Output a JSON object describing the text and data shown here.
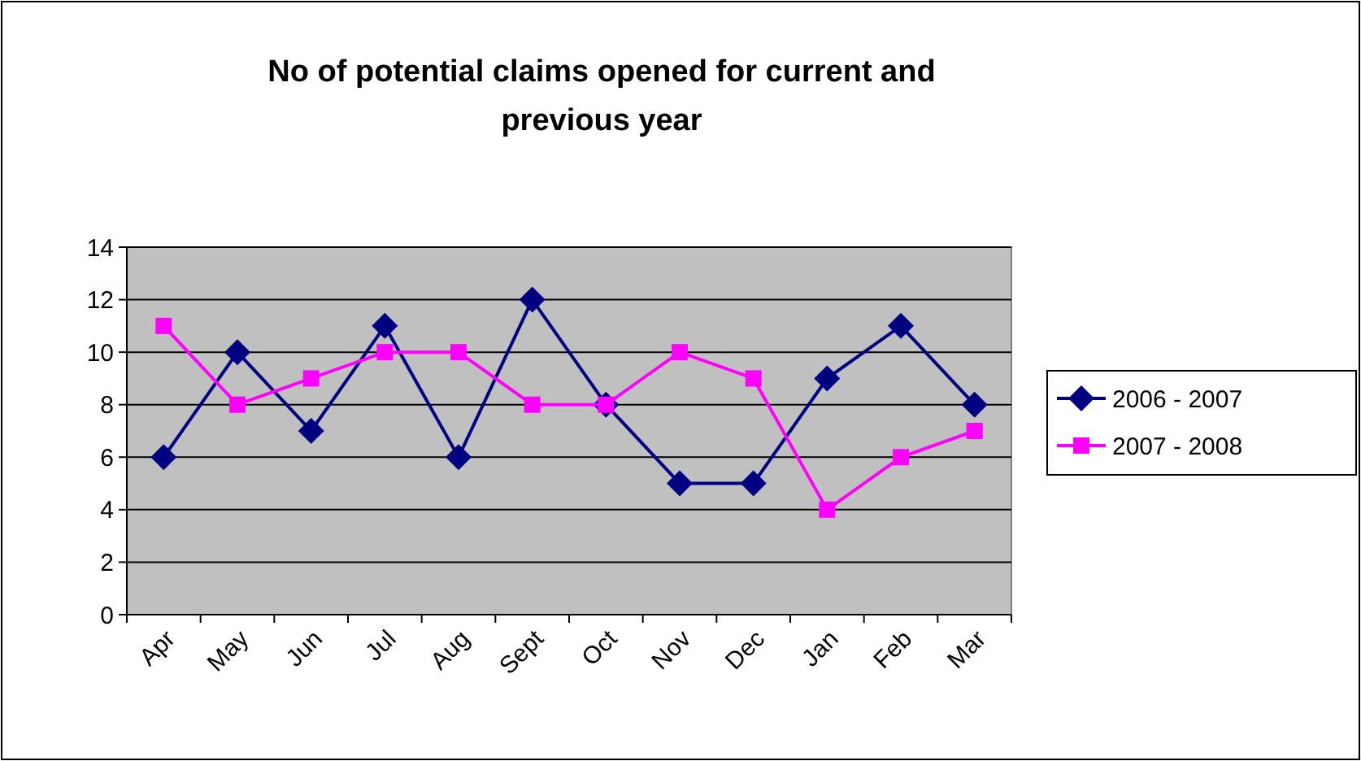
{
  "chart_data": {
    "type": "line",
    "title": "No of potential claims opened for current and previous year",
    "categories": [
      "Apr",
      "May",
      "Jun",
      "Jul",
      "Aug",
      "Sept",
      "Oct",
      "Nov",
      "Dec",
      "Jan",
      "Feb",
      "Mar"
    ],
    "series": [
      {
        "name": "2006 - 2007",
        "color": "#000080",
        "marker": "diamond",
        "values": [
          6,
          10,
          7,
          11,
          6,
          12,
          8,
          5,
          5,
          9,
          11,
          8
        ]
      },
      {
        "name": "2007 - 2008",
        "color": "#ff00ff",
        "marker": "square",
        "values": [
          11,
          8,
          9,
          10,
          10,
          8,
          8,
          10,
          9,
          4,
          6,
          7
        ]
      }
    ],
    "ylim": [
      0,
      14
    ],
    "yticks": [
      0,
      2,
      4,
      6,
      8,
      10,
      12,
      14
    ],
    "grid": "y",
    "legend": "right",
    "line_style": "solid"
  }
}
